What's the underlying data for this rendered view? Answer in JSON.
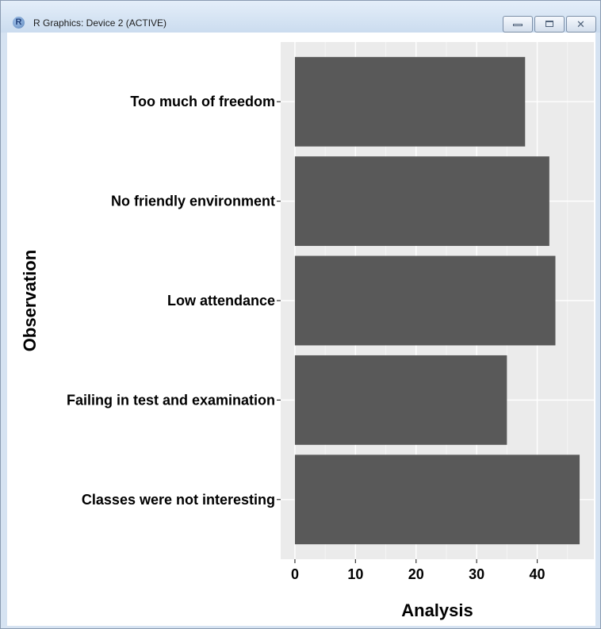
{
  "window": {
    "title": "R Graphics: Device 2 (ACTIVE)",
    "app_icon": "R",
    "controls": {
      "minimize_icon": "minimize-icon",
      "maximize_icon": "maximize-icon",
      "close_icon": "close-icon",
      "close_glyph": "✕"
    }
  },
  "chart_data": {
    "type": "bar",
    "orientation": "horizontal",
    "categories": [
      "Classes were not interesting",
      "Failing in test and examination",
      "Low attendance",
      "No friendly environment",
      "Too much of freedom"
    ],
    "values": [
      47,
      35,
      43,
      42,
      38
    ],
    "xlabel": "Analysis",
    "ylabel": "Observation",
    "xlim": [
      -2.35,
      49.35
    ],
    "xticks": [
      0,
      10,
      20,
      30,
      40
    ],
    "grid": true,
    "colors": {
      "panel_bg": "#ebebeb",
      "bar": "#595959",
      "grid_major": "#ffffff",
      "grid_minor": "#f5f5f5",
      "text": "#000000",
      "tick": "#333333"
    }
  }
}
